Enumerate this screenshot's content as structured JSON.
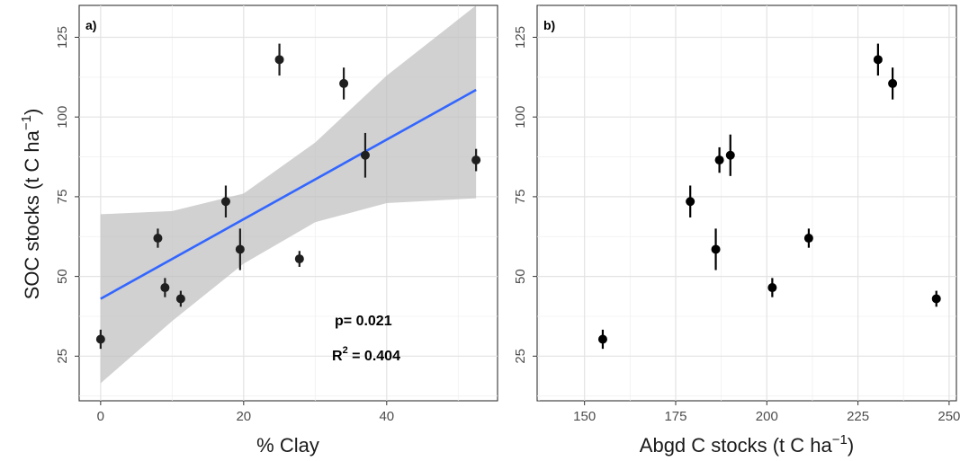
{
  "chart_data": [
    {
      "type": "scatter",
      "panel_label": "a)",
      "xlabel": "% Clay",
      "ylabel_main": "SOC stocks (t C ha",
      "ylabel_sup": "−1",
      "ylabel_tail": ")",
      "xlim": [
        -3,
        55.5
      ],
      "ylim": [
        11,
        135
      ],
      "xticks": [
        0,
        20,
        40
      ],
      "yticks": [
        25,
        50,
        75,
        100,
        125
      ],
      "grid": true,
      "points": [
        {
          "x": 0,
          "y": 30.3,
          "err": 3
        },
        {
          "x": 8,
          "y": 62,
          "err": 3
        },
        {
          "x": 9,
          "y": 46.5,
          "err": 3
        },
        {
          "x": 11.2,
          "y": 43,
          "err": 2.5
        },
        {
          "x": 17.5,
          "y": 73.5,
          "err": 5
        },
        {
          "x": 19.5,
          "y": 58.5,
          "err": 6.5
        },
        {
          "x": 25,
          "y": 118,
          "err": 5
        },
        {
          "x": 27.8,
          "y": 55.5,
          "err": 2.5
        },
        {
          "x": 34,
          "y": 110.5,
          "err": 5
        },
        {
          "x": 37,
          "y": 88,
          "err": 7
        },
        {
          "x": 52.5,
          "y": 86.5,
          "err": 3.5
        }
      ],
      "fit": {
        "x": [
          0,
          52.5
        ],
        "y": [
          43,
          108.5
        ]
      },
      "ci_band": {
        "x": [
          0,
          10,
          20,
          30,
          40,
          52.5
        ],
        "upper": [
          69.5,
          70.5,
          76,
          92,
          113,
          137
        ],
        "lower": [
          16.5,
          36,
          54,
          67,
          73,
          74.5
        ]
      },
      "annotations": {
        "p": "p= 0.021",
        "r2_label": "R",
        "r2_sup": "2",
        "r2_value": " = 0.404"
      }
    },
    {
      "type": "scatter",
      "panel_label": "b)",
      "xlabel_main": "Abgd C stocks (t C ha",
      "xlabel_sup": "−1",
      "xlabel_tail": ")",
      "xlim": [
        137,
        252
      ],
      "ylim": [
        11,
        135
      ],
      "xticks": [
        150,
        175,
        200,
        225,
        250
      ],
      "yticks": [
        25,
        50,
        75,
        100,
        125
      ],
      "grid": true,
      "points": [
        {
          "x": 155,
          "y": 30.3,
          "err": 3
        },
        {
          "x": 179,
          "y": 73.5,
          "err": 5
        },
        {
          "x": 186,
          "y": 58.5,
          "err": 6.5
        },
        {
          "x": 187,
          "y": 86.5,
          "err": 4
        },
        {
          "x": 190,
          "y": 88,
          "err": 6.5
        },
        {
          "x": 201.5,
          "y": 46.5,
          "err": 3
        },
        {
          "x": 211.5,
          "y": 62,
          "err": 3
        },
        {
          "x": 230.5,
          "y": 118,
          "err": 5
        },
        {
          "x": 234.5,
          "y": 110.5,
          "err": 5
        },
        {
          "x": 246.5,
          "y": 43,
          "err": 2.5
        }
      ]
    }
  ]
}
